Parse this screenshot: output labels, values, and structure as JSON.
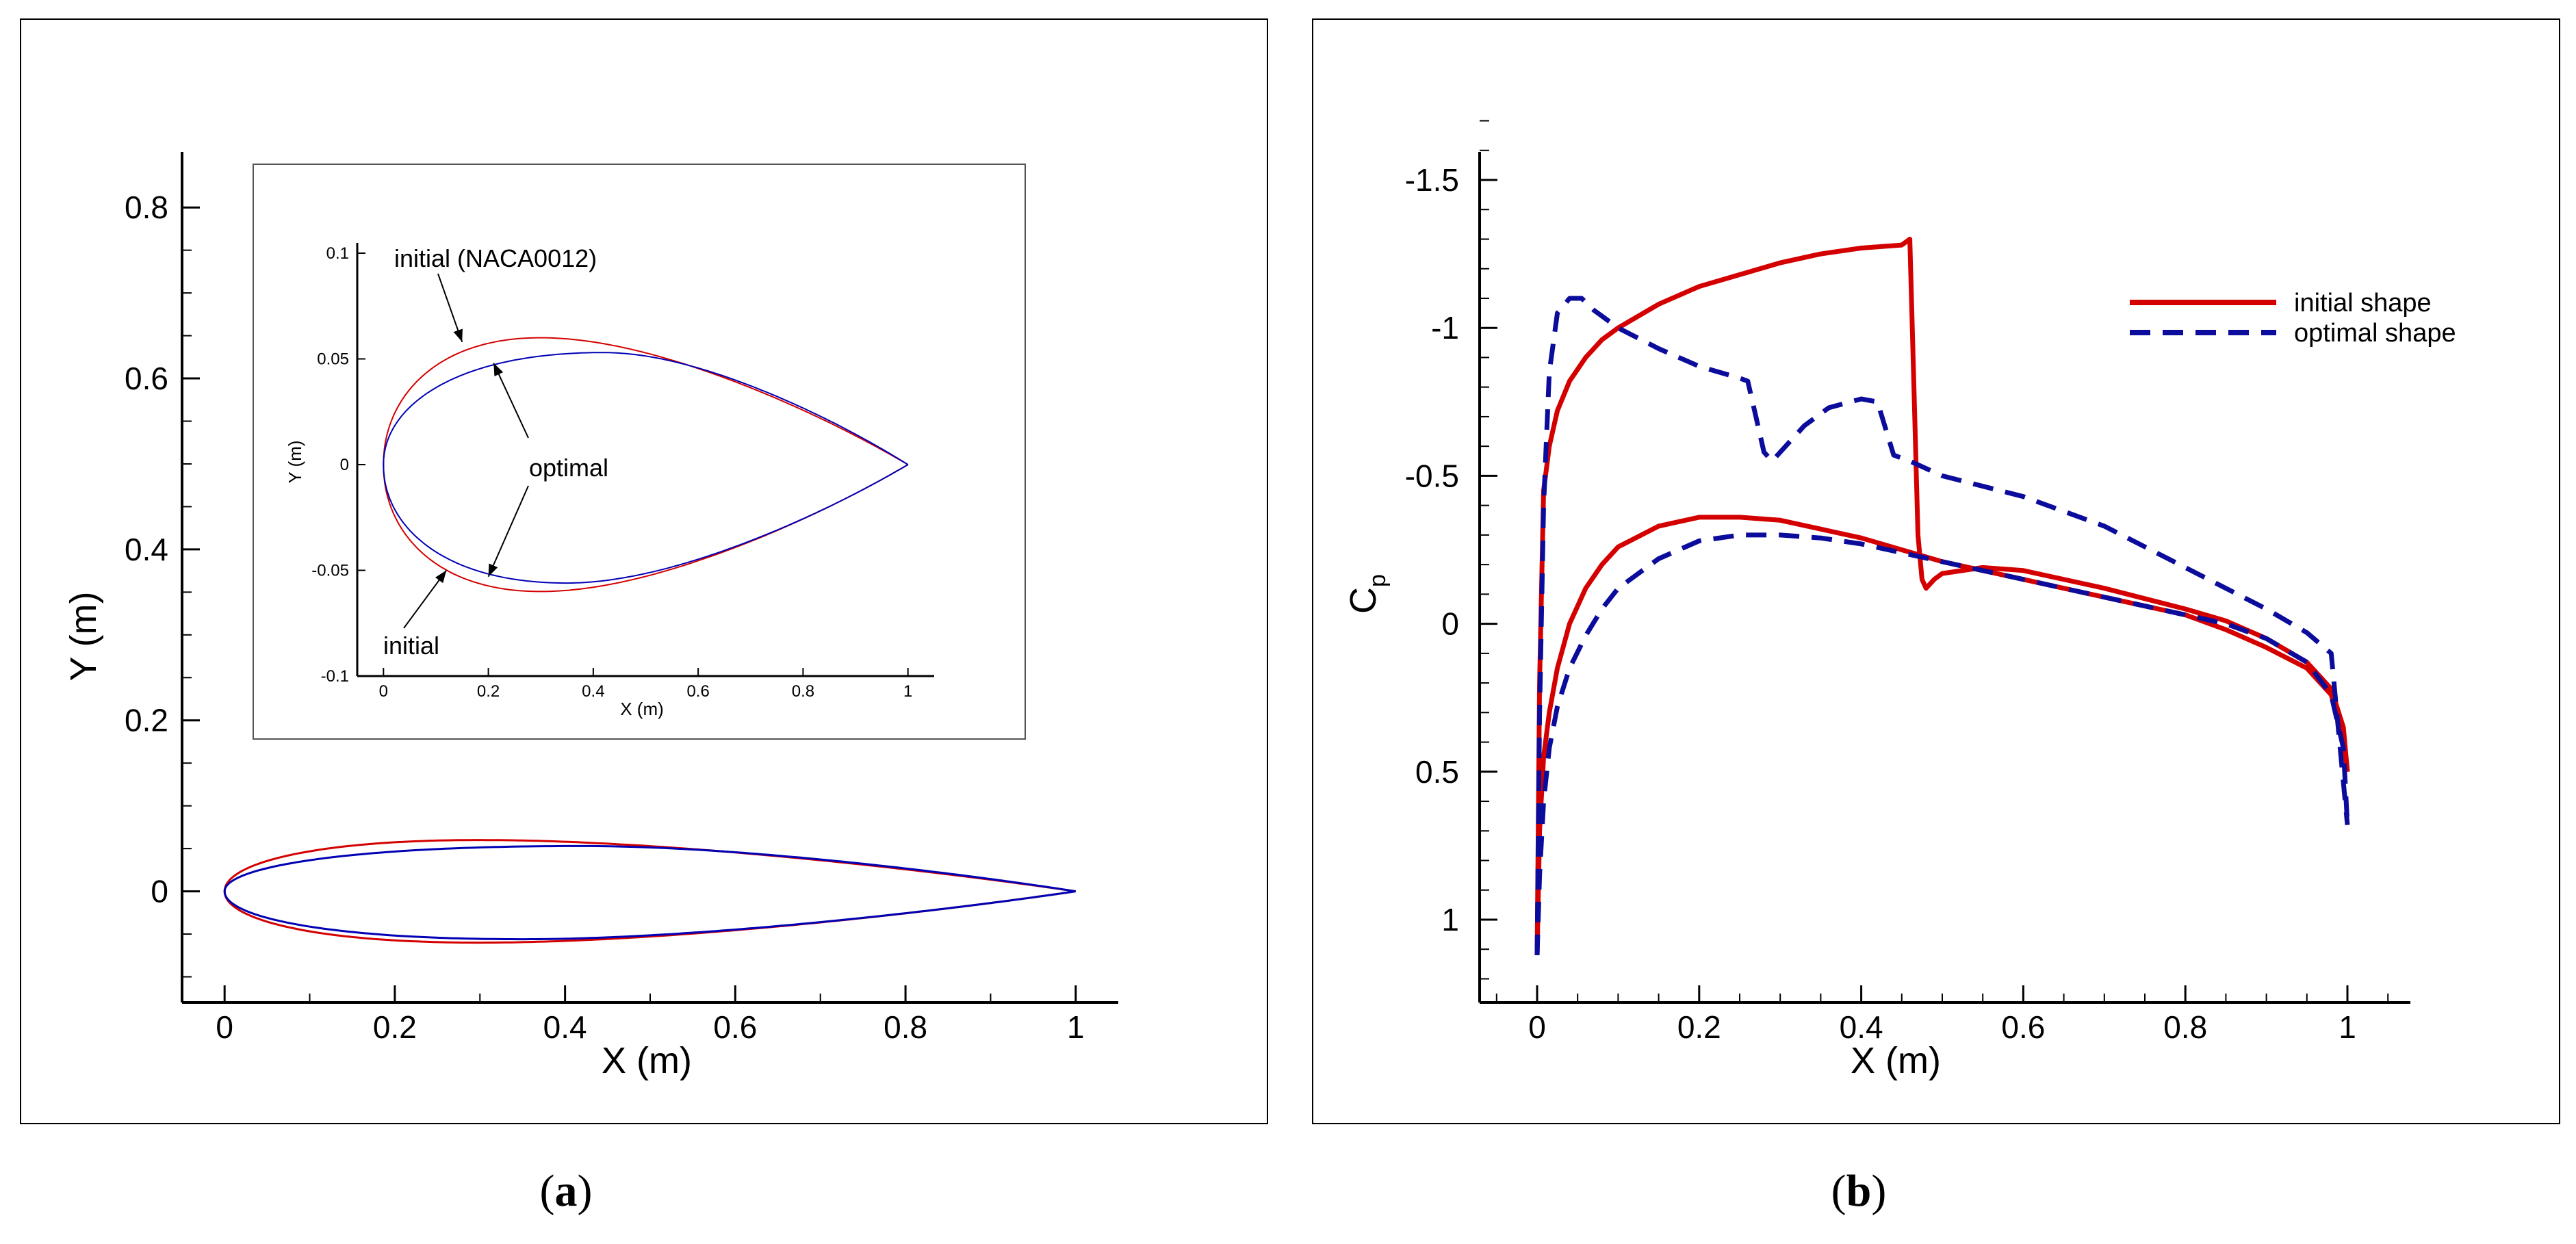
{
  "colors": {
    "initial": "#d40000",
    "optimal": "#0000b4",
    "optimal_b": "#0c0c9c",
    "axis": "#000000"
  },
  "chart_data": [
    {
      "id": "a",
      "type": "line",
      "caption_open": "(",
      "caption_letter": "a",
      "caption_close": ")",
      "xlabel": "X (m)",
      "ylabel": "Y (m)",
      "xlim": [
        -0.05,
        1.05
      ],
      "ylim": [
        -0.13,
        0.865
      ],
      "xticks": [
        0,
        0.2,
        0.4,
        0.6,
        0.8,
        1
      ],
      "xtick_labels": [
        "0",
        "0.2",
        "0.4",
        "0.6",
        "0.8",
        "1"
      ],
      "yticks": [
        0,
        0.2,
        0.4,
        0.6,
        0.8
      ],
      "ytick_labels": [
        "0",
        "0.2",
        "0.4",
        "0.6",
        "0.8"
      ],
      "series": [
        {
          "name": "initial (NACA0012)",
          "color_key": "initial",
          "thickness_ratio": 0.12,
          "max_thickness_at": 0.3
        },
        {
          "name": "optimal",
          "color_key": "optimal",
          "upper_max": 0.053,
          "upper_max_at": 0.42,
          "lower_max": 0.056,
          "lower_max_at": 0.35
        }
      ],
      "inset": {
        "xlabel": "X (m)",
        "ylabel": "Y (m)",
        "xlim": [
          -0.05,
          1.05
        ],
        "ylim": [
          -0.1,
          0.1
        ],
        "xticks": [
          0,
          0.2,
          0.4,
          0.6,
          0.8,
          1
        ],
        "xtick_labels": [
          "0",
          "0.2",
          "0.4",
          "0.6",
          "0.8",
          "1"
        ],
        "yticks": [
          -0.1,
          -0.05,
          0,
          0.05,
          0.1
        ],
        "ytick_labels": [
          "-0.1",
          "-0.05",
          "0",
          "0.05",
          "0.1"
        ],
        "annotations": [
          {
            "text": "initial (NACA0012)",
            "point": [
              0.15,
              0.058
            ]
          },
          {
            "text": "optimal",
            "point": [
              0.21,
              0.048
            ]
          },
          {
            "text": "optimal",
            "point": [
              0.2,
              -0.053
            ]
          },
          {
            "text": "initial",
            "point": [
              0.12,
              -0.05
            ]
          }
        ]
      }
    },
    {
      "id": "b",
      "type": "line",
      "caption_open": "(",
      "caption_letter": "b",
      "caption_close": ")",
      "xlabel": "X (m)",
      "ylabel": "C",
      "ylabel_sub": "p",
      "xlim": [
        -0.07,
        1.08
      ],
      "ylim": [
        1.28,
        -1.7
      ],
      "y_inverted": true,
      "xticks": [
        0,
        0.2,
        0.4,
        0.6,
        0.8,
        1
      ],
      "xtick_labels": [
        "0",
        "0.2",
        "0.4",
        "0.6",
        "0.8",
        "1"
      ],
      "yticks": [
        -1.5,
        -1,
        -0.5,
        0,
        0.5,
        1
      ],
      "ytick_labels": [
        "-1.5",
        "-1",
        "-0.5",
        "0",
        "0.5",
        "1"
      ],
      "legend_position": "top-right",
      "series": [
        {
          "name": "initial shape",
          "color_key": "initial",
          "dash": "solid",
          "upper": {
            "x": [
              0,
              0.003,
              0.008,
              0.015,
              0.025,
              0.04,
              0.06,
              0.08,
              0.1,
              0.15,
              0.2,
              0.25,
              0.3,
              0.35,
              0.4,
              0.45,
              0.455,
              0.46,
              0.465,
              0.47,
              0.475,
              0.48,
              0.49,
              0.5,
              0.55,
              0.6,
              0.7,
              0.8,
              0.85,
              0.9,
              0.95,
              0.98,
              0.995,
              1
            ],
            "y": [
              1.12,
              0.2,
              -0.45,
              -0.6,
              -0.72,
              -0.82,
              -0.9,
              -0.96,
              -1.0,
              -1.08,
              -1.14,
              -1.18,
              -1.22,
              -1.25,
              -1.27,
              -1.28,
              -1.29,
              -1.3,
              -0.8,
              -0.3,
              -0.15,
              -0.12,
              -0.15,
              -0.17,
              -0.19,
              -0.18,
              -0.12,
              -0.05,
              -0.01,
              0.05,
              0.13,
              0.22,
              0.35,
              0.5
            ]
          },
          "lower": {
            "x": [
              0,
              0.003,
              0.008,
              0.015,
              0.025,
              0.04,
              0.06,
              0.08,
              0.1,
              0.15,
              0.2,
              0.25,
              0.3,
              0.35,
              0.4,
              0.45,
              0.5,
              0.55,
              0.6,
              0.7,
              0.8,
              0.85,
              0.9,
              0.95,
              0.98,
              0.995,
              1
            ],
            "y": [
              1.12,
              0.7,
              0.45,
              0.3,
              0.15,
              0.0,
              -0.12,
              -0.2,
              -0.26,
              -0.33,
              -0.36,
              -0.36,
              -0.35,
              -0.32,
              -0.29,
              -0.25,
              -0.21,
              -0.18,
              -0.15,
              -0.09,
              -0.03,
              0.02,
              0.08,
              0.15,
              0.24,
              0.38,
              0.5
            ]
          }
        },
        {
          "name": "optimal shape",
          "color_key": "optimal_b",
          "dash": "dashed",
          "upper": {
            "x": [
              0,
              0.003,
              0.008,
              0.015,
              0.025,
              0.04,
              0.055,
              0.07,
              0.1,
              0.15,
              0.2,
              0.25,
              0.26,
              0.27,
              0.28,
              0.29,
              0.3,
              0.33,
              0.36,
              0.4,
              0.42,
              0.44,
              0.46,
              0.5,
              0.6,
              0.7,
              0.8,
              0.85,
              0.9,
              0.95,
              0.98,
              1
            ],
            "y": [
              1.12,
              0.3,
              -0.4,
              -0.85,
              -1.05,
              -1.1,
              -1.1,
              -1.06,
              -1.0,
              -0.93,
              -0.87,
              -0.83,
              -0.82,
              -0.7,
              -0.58,
              -0.55,
              -0.58,
              -0.67,
              -0.73,
              -0.76,
              -0.75,
              -0.57,
              -0.55,
              -0.5,
              -0.43,
              -0.33,
              -0.19,
              -0.12,
              -0.05,
              0.03,
              0.1,
              0.68
            ]
          },
          "lower": {
            "x": [
              0,
              0.003,
              0.008,
              0.015,
              0.025,
              0.04,
              0.06,
              0.08,
              0.1,
              0.15,
              0.2,
              0.25,
              0.3,
              0.35,
              0.4,
              0.45,
              0.5,
              0.55,
              0.6,
              0.7,
              0.8,
              0.85,
              0.9,
              0.95,
              0.98,
              0.995,
              1
            ],
            "y": [
              1.12,
              0.85,
              0.6,
              0.42,
              0.28,
              0.15,
              0.04,
              -0.05,
              -0.12,
              -0.22,
              -0.28,
              -0.3,
              -0.3,
              -0.29,
              -0.27,
              -0.24,
              -0.21,
              -0.18,
              -0.15,
              -0.09,
              -0.03,
              0.0,
              0.05,
              0.13,
              0.24,
              0.42,
              0.68
            ]
          }
        }
      ]
    }
  ]
}
